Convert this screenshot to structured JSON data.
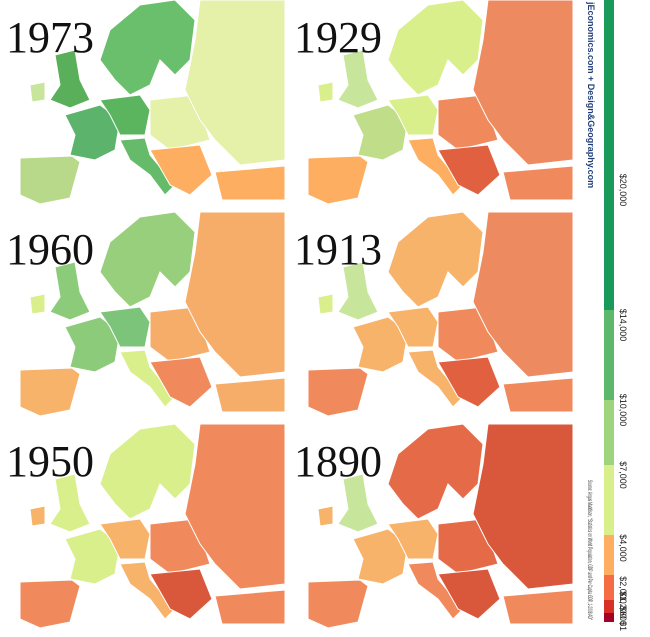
{
  "panels": [
    {
      "year": "1973",
      "colors": [
        "#6abf6d",
        "#5aaf5a",
        "#c7e59b",
        "#5cb36c",
        "#b8d98a",
        "#5bb55e",
        "#66bb6a",
        "#e5f0a8",
        "#e5f0a8",
        "#fdae61",
        "#fdae61"
      ]
    },
    {
      "year": "1929",
      "colors": [
        "#d9ef8b",
        "#c7e59b",
        "#d9ef8b",
        "#c0dd8a",
        "#fdae61",
        "#d9ef8b",
        "#fdae61",
        "#f08a5c",
        "#ee8a5f",
        "#e06040",
        "#f08a5c"
      ]
    },
    {
      "year": "1960",
      "colors": [
        "#98cf7c",
        "#8ccb7a",
        "#d9ef8b",
        "#8ccb7a",
        "#f8b36b",
        "#7cc47a",
        "#d9ef8b",
        "#f7ad6a",
        "#f7ad6a",
        "#f08a5c",
        "#f7ad6a"
      ]
    },
    {
      "year": "1913",
      "colors": [
        "#f8b36b",
        "#c7e59b",
        "#d9ef8b",
        "#f8b36b",
        "#f08a5c",
        "#f8b36b",
        "#f8b36b",
        "#f08a5c",
        "#ee8a5f",
        "#e06040",
        "#f08a5c"
      ]
    },
    {
      "year": "1950",
      "colors": [
        "#d9ef8b",
        "#d9ef8b",
        "#f8b36b",
        "#d9ef8b",
        "#f08a5c",
        "#f8b36b",
        "#f8b36b",
        "#f08a5c",
        "#f08a5c",
        "#d9573a",
        "#f08a5c"
      ]
    },
    {
      "year": "1890",
      "colors": [
        "#e56a48",
        "#c7e59b",
        "#f8b36b",
        "#f8b36b",
        "#f08a5c",
        "#f8b36b",
        "#f08a5c",
        "#e56a48",
        "#d9573a",
        "#d9573a",
        "#f08a5c"
      ]
    }
  ],
  "legend": {
    "credit": "jEconomics.com + Design&Geography.com",
    "source": "Source: Angus Maddison, \"Statistics on World Population, GDP and Per Capita GDP, 1-2008 AD\"",
    "colors": [
      "#1a9a5a",
      "#5cb86a",
      "#9fd47f",
      "#d9ef8b",
      "#fdae61",
      "#f46d43",
      "#d73027",
      "#a50026"
    ],
    "ticks": [
      "$20,000",
      "$14,000",
      "$10,000",
      "$7,000",
      "$4,000",
      "$2,000",
      "$1,200",
      "$600",
      "$1"
    ]
  }
}
